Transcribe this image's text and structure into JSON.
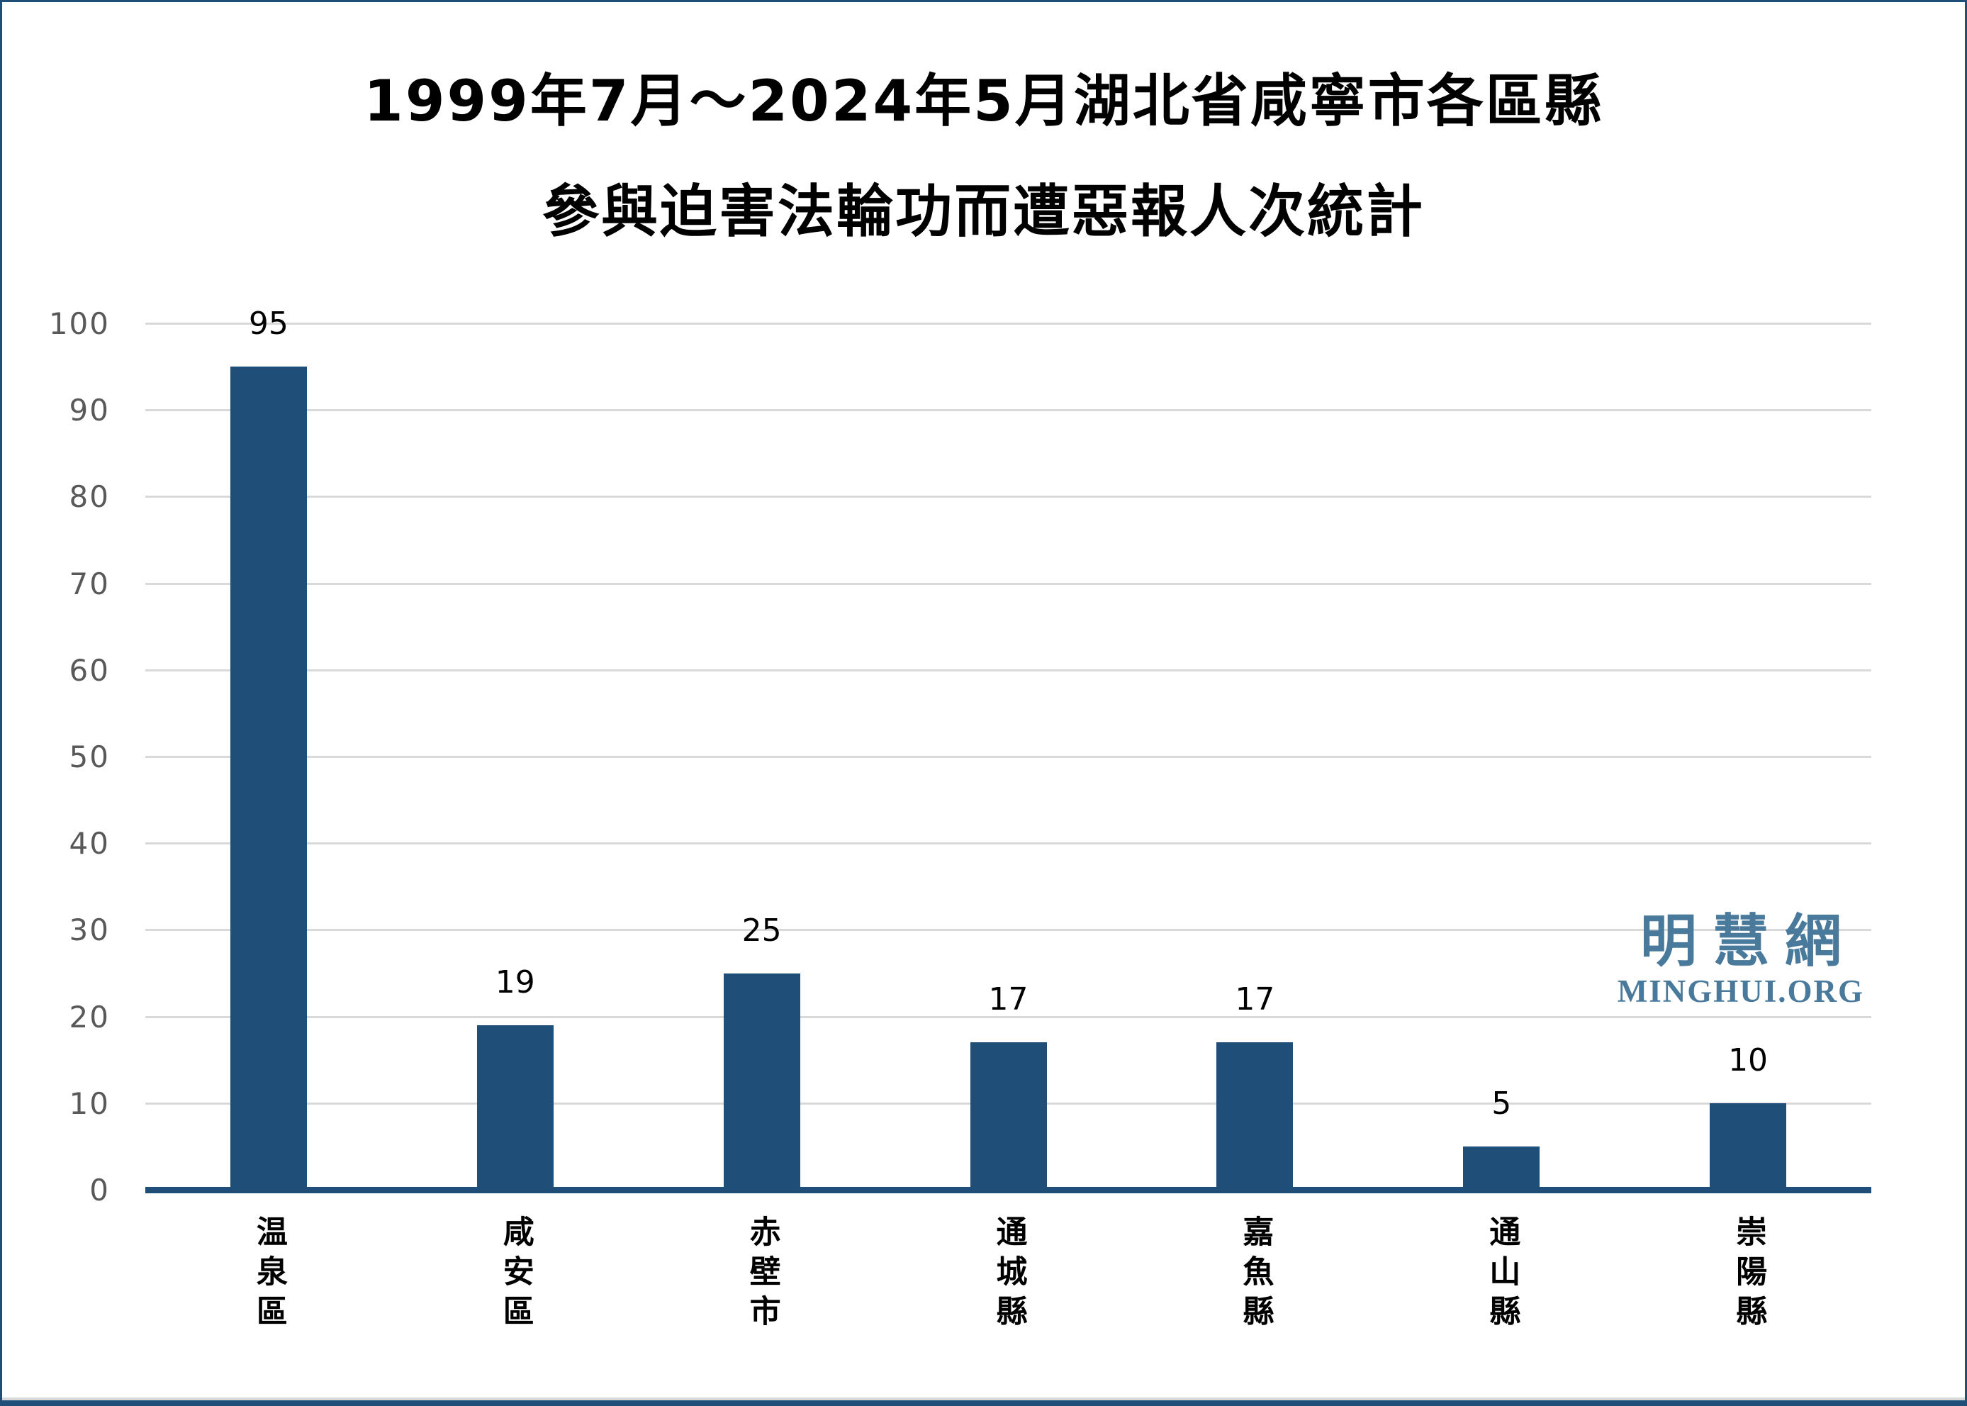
{
  "title": {
    "line1": "1999年7月～2024年5月湖北省咸寧市各區縣",
    "line2": "參與迫害法輪功而遭惡報人次統計"
  },
  "watermark": {
    "cjk": "明慧網",
    "latin": "MINGHUI.ORG"
  },
  "chart_data": {
    "type": "bar",
    "title": "1999年7月～2024年5月湖北省咸寧市各區縣參與迫害法輪功而遭惡報人次統計",
    "categories": [
      "温泉區",
      "咸安區",
      "赤壁市",
      "通城縣",
      "嘉魚縣",
      "通山縣",
      "崇陽縣"
    ],
    "values": [
      95,
      19,
      25,
      17,
      17,
      5,
      10
    ],
    "xlabel": "",
    "ylabel": "",
    "ylim": [
      0,
      100
    ],
    "yticks": [
      0,
      10,
      20,
      30,
      40,
      50,
      60,
      70,
      80,
      90,
      100
    ],
    "grid": true,
    "legend": false,
    "colors": {
      "bar": "#1f4e79",
      "axis_line": "#1f4e79",
      "gridline": "#d9d9d9",
      "tick_label": "#595959",
      "value_label": "#000000",
      "category_label": "#000000",
      "title": "#000000",
      "watermark": "#4a7a9b",
      "border": "#1f4e79",
      "background": "#ffffff"
    }
  }
}
